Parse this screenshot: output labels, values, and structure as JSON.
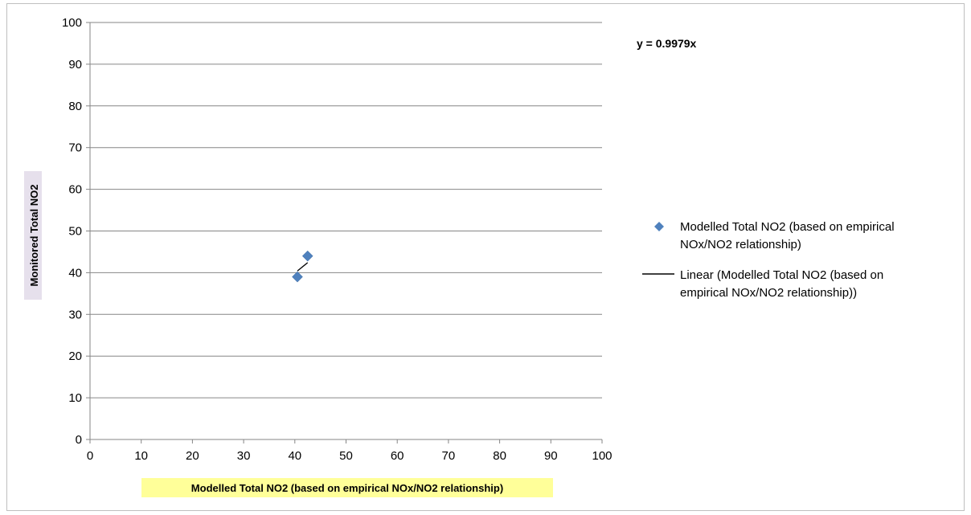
{
  "chart_data": {
    "type": "scatter",
    "title": "",
    "xlabel": "Modelled Total NO2 (based on empirical NOx/NO2 relationship)",
    "ylabel": "Monitored Total NO2",
    "xlim": [
      0,
      100
    ],
    "ylim": [
      0,
      100
    ],
    "x_ticks": [
      "0",
      "10",
      "20",
      "30",
      "40",
      "50",
      "60",
      "70",
      "80",
      "90",
      "100"
    ],
    "y_ticks": [
      "0",
      "10",
      "20",
      "30",
      "40",
      "50",
      "60",
      "70",
      "80",
      "90",
      "100"
    ],
    "grid": "horizontal",
    "legend_position": "right",
    "series": [
      {
        "name": "Modelled Total NO2 (based on empirical NOx/NO2 relationship)",
        "marker": "diamond",
        "color": "#4f81bd",
        "points": [
          {
            "x": 40.5,
            "y": 39
          },
          {
            "x": 42.5,
            "y": 44
          }
        ]
      }
    ],
    "trendline": {
      "name": "Linear (Modelled Total NO2 (based on empirical NOx/NO2 relationship))",
      "equation": "y = 0.9979x",
      "slope": 0.9979,
      "color": "#000000"
    },
    "legend": {
      "series_line1": "Modelled Total NO2 (based on empirical",
      "series_line2": "NOx/NO2 relationship)",
      "trend_line1": "Linear (Modelled Total NO2 (based on",
      "trend_line2": "empirical NOx/NO2 relationship))"
    },
    "colors": {
      "grid": "#868686",
      "axis": "#868686",
      "xlabel_bg": "#ffff99",
      "ylabel_bg": "#e6e0ec"
    }
  }
}
